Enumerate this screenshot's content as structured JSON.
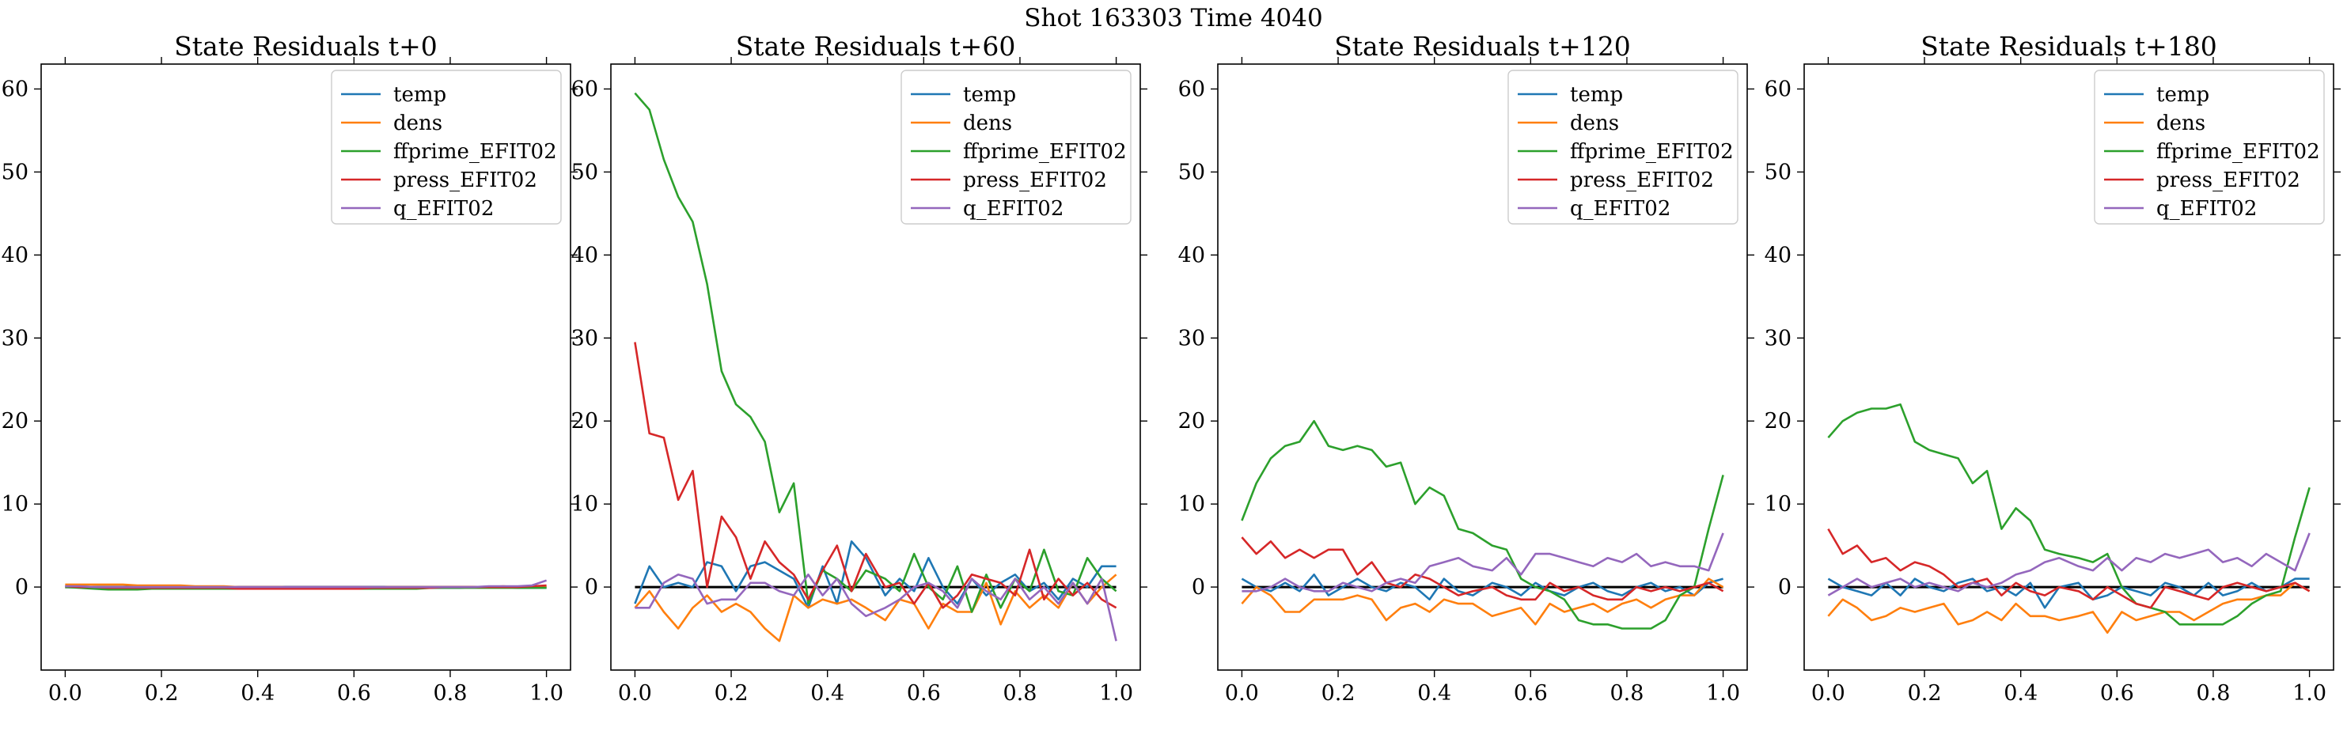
{
  "suptitle": "Shot 163303   Time 4040",
  "colors": {
    "temp": "#1f77b4",
    "dens": "#ff7f0e",
    "ffprime_EFIT02": "#2ca02c",
    "press_EFIT02": "#d62728",
    "q_EFIT02": "#9467bd",
    "zero_line": "#000000"
  },
  "chart_data": [
    {
      "type": "line",
      "title": "State Residuals t+0",
      "xlabel": "",
      "ylabel": "",
      "xlim": [
        -0.05,
        1.05
      ],
      "ylim": [
        -10,
        63
      ],
      "xticks": [
        "0.0",
        "0.2",
        "0.4",
        "0.6",
        "0.8",
        "1.0"
      ],
      "yticks": [
        "0",
        "10",
        "20",
        "30",
        "40",
        "50",
        "60"
      ],
      "grid": false,
      "legend_position": "top-right",
      "zero_line": true,
      "x": [
        0.0,
        0.03,
        0.06,
        0.09,
        0.12,
        0.15,
        0.18,
        0.21,
        0.24,
        0.27,
        0.3,
        0.33,
        0.36,
        0.39,
        0.42,
        0.45,
        0.48,
        0.52,
        0.55,
        0.58,
        0.61,
        0.64,
        0.67,
        0.7,
        0.73,
        0.76,
        0.79,
        0.82,
        0.85,
        0.88,
        0.91,
        0.94,
        0.97,
        1.0
      ],
      "series": [
        {
          "name": "temp",
          "values": [
            0.2,
            0.1,
            0.0,
            -0.1,
            -0.1,
            -0.2,
            -0.1,
            -0.1,
            -0.1,
            -0.1,
            -0.1,
            -0.2,
            -0.2,
            -0.2,
            -0.2,
            -0.2,
            -0.2,
            -0.2,
            -0.2,
            -0.2,
            -0.2,
            -0.2,
            -0.1,
            -0.1,
            -0.1,
            -0.1,
            -0.1,
            -0.1,
            0.0,
            0.0,
            0.0,
            -0.1,
            -0.1,
            -0.1
          ]
        },
        {
          "name": "dens",
          "values": [
            0.3,
            0.3,
            0.3,
            0.3,
            0.3,
            0.2,
            0.2,
            0.2,
            0.2,
            0.1,
            0.1,
            0.1,
            0.0,
            0.0,
            0.0,
            0.0,
            -0.1,
            -0.1,
            -0.1,
            -0.1,
            -0.1,
            -0.1,
            0.0,
            0.0,
            0.0,
            0.0,
            0.0,
            0.0,
            0.0,
            0.0,
            0.1,
            0.0,
            0.0,
            0.0
          ]
        },
        {
          "name": "ffprime_EFIT02",
          "values": [
            0.0,
            -0.1,
            -0.2,
            -0.3,
            -0.3,
            -0.3,
            -0.2,
            -0.2,
            -0.2,
            -0.2,
            -0.2,
            -0.2,
            -0.2,
            -0.2,
            -0.2,
            -0.2,
            -0.2,
            -0.2,
            -0.2,
            -0.2,
            -0.2,
            -0.2,
            -0.2,
            -0.2,
            -0.2,
            -0.1,
            -0.1,
            -0.1,
            -0.1,
            -0.1,
            -0.1,
            -0.1,
            -0.1,
            -0.1
          ]
        },
        {
          "name": "press_EFIT02",
          "values": [
            0.1,
            0.0,
            0.0,
            -0.1,
            -0.1,
            -0.1,
            -0.1,
            -0.1,
            -0.1,
            -0.1,
            -0.1,
            -0.1,
            -0.2,
            -0.2,
            -0.2,
            -0.2,
            -0.2,
            -0.2,
            -0.2,
            -0.2,
            -0.2,
            -0.1,
            -0.1,
            -0.1,
            -0.1,
            -0.1,
            0.0,
            0.0,
            0.0,
            0.0,
            0.0,
            0.0,
            0.1,
            0.2
          ]
        },
        {
          "name": "q_EFIT02",
          "values": [
            0.1,
            0.1,
            0.0,
            0.0,
            0.0,
            0.0,
            0.0,
            0.0,
            0.0,
            0.0,
            0.0,
            0.0,
            0.0,
            0.0,
            0.0,
            0.0,
            0.0,
            0.0,
            0.0,
            0.0,
            0.0,
            0.0,
            0.0,
            0.0,
            0.0,
            0.0,
            0.0,
            0.0,
            0.0,
            0.1,
            0.1,
            0.1,
            0.2,
            0.8
          ]
        }
      ]
    },
    {
      "type": "line",
      "title": "State Residuals t+60",
      "xlabel": "",
      "ylabel": "",
      "xlim": [
        -0.05,
        1.05
      ],
      "ylim": [
        -10,
        63
      ],
      "xticks": [
        "0.0",
        "0.2",
        "0.4",
        "0.6",
        "0.8",
        "1.0"
      ],
      "yticks": [
        "0",
        "10",
        "20",
        "30",
        "40",
        "50",
        "60"
      ],
      "grid": false,
      "legend_position": "top-right",
      "zero_line": true,
      "x": [
        0.0,
        0.03,
        0.06,
        0.09,
        0.12,
        0.15,
        0.18,
        0.21,
        0.24,
        0.27,
        0.3,
        0.33,
        0.36,
        0.39,
        0.42,
        0.45,
        0.48,
        0.52,
        0.55,
        0.58,
        0.61,
        0.64,
        0.67,
        0.7,
        0.73,
        0.76,
        0.79,
        0.82,
        0.85,
        0.88,
        0.91,
        0.94,
        0.97,
        1.0
      ],
      "series": [
        {
          "name": "temp",
          "values": [
            -2.0,
            2.5,
            0.0,
            0.5,
            0.0,
            3.0,
            2.5,
            -0.5,
            2.5,
            3.0,
            2.0,
            1.0,
            -2.5,
            2.5,
            -2.0,
            5.5,
            3.5,
            -1.0,
            1.0,
            -0.5,
            3.5,
            0.0,
            -2.0,
            1.0,
            -1.0,
            0.5,
            1.5,
            -0.5,
            0.5,
            -1.5,
            1.0,
            0.0,
            2.5,
            2.5
          ]
        },
        {
          "name": "dens",
          "values": [
            -2.5,
            -0.5,
            -3.0,
            -5.0,
            -2.5,
            -1.0,
            -3.0,
            -2.0,
            -3.0,
            -5.0,
            -6.5,
            -1.0,
            -2.5,
            -1.5,
            -2.0,
            -1.5,
            -2.5,
            -4.0,
            -1.5,
            -2.0,
            -5.0,
            -2.0,
            -3.0,
            -3.0,
            0.5,
            -4.5,
            -0.5,
            -2.5,
            -1.0,
            -2.5,
            0.5,
            -2.0,
            0.0,
            1.5
          ]
        },
        {
          "name": "ffprime_EFIT02",
          "values": [
            59.5,
            57.5,
            51.5,
            47.0,
            44.0,
            36.5,
            26.0,
            22.0,
            20.5,
            17.5,
            9.0,
            12.5,
            -2.0,
            2.0,
            1.0,
            -0.5,
            2.0,
            1.0,
            -0.5,
            4.0,
            0.0,
            -1.5,
            2.5,
            -3.0,
            1.5,
            -2.5,
            1.0,
            -0.5,
            4.5,
            -0.5,
            -1.0,
            3.5,
            1.0,
            -0.5
          ]
        },
        {
          "name": "press_EFIT02",
          "values": [
            29.5,
            18.5,
            18.0,
            10.5,
            14.0,
            0.0,
            8.5,
            6.0,
            1.0,
            5.5,
            3.0,
            1.5,
            -1.5,
            2.0,
            5.0,
            -0.5,
            4.0,
            0.0,
            0.5,
            -2.0,
            0.5,
            -2.5,
            -1.0,
            1.5,
            1.0,
            0.5,
            -1.0,
            4.5,
            -1.5,
            1.0,
            -1.0,
            0.5,
            -1.5,
            -2.5
          ]
        },
        {
          "name": "q_EFIT02",
          "values": [
            -2.5,
            -2.5,
            0.5,
            1.5,
            1.0,
            -2.0,
            -1.5,
            -1.5,
            0.5,
            0.5,
            -0.5,
            -1.0,
            1.5,
            -1.0,
            1.0,
            -2.0,
            -3.5,
            -2.5,
            -1.5,
            0.0,
            0.5,
            -0.5,
            -2.5,
            1.0,
            -0.5,
            -1.5,
            1.0,
            -1.5,
            0.0,
            -2.0,
            0.5,
            -2.0,
            1.0,
            -6.5
          ]
        }
      ]
    },
    {
      "type": "line",
      "title": "State Residuals t+120",
      "xlabel": "",
      "ylabel": "",
      "xlim": [
        -0.05,
        1.05
      ],
      "ylim": [
        -10,
        63
      ],
      "xticks": [
        "0.0",
        "0.2",
        "0.4",
        "0.6",
        "0.8",
        "1.0"
      ],
      "yticks": [
        "0",
        "10",
        "20",
        "30",
        "40",
        "50",
        "60"
      ],
      "grid": false,
      "legend_position": "top-right",
      "zero_line": true,
      "x": [
        0.0,
        0.03,
        0.06,
        0.09,
        0.12,
        0.15,
        0.18,
        0.21,
        0.24,
        0.27,
        0.3,
        0.33,
        0.36,
        0.39,
        0.42,
        0.45,
        0.48,
        0.52,
        0.55,
        0.58,
        0.61,
        0.64,
        0.67,
        0.7,
        0.73,
        0.76,
        0.79,
        0.82,
        0.85,
        0.88,
        0.91,
        0.94,
        0.97,
        1.0
      ],
      "series": [
        {
          "name": "temp",
          "values": [
            1.0,
            0.0,
            -0.5,
            0.5,
            -0.5,
            1.5,
            -1.0,
            0.0,
            1.0,
            0.0,
            -0.5,
            0.5,
            0.0,
            -1.5,
            1.0,
            -0.5,
            -1.0,
            0.5,
            0.0,
            -1.0,
            0.5,
            -0.5,
            -1.0,
            0.0,
            0.5,
            -0.5,
            -1.0,
            0.0,
            0.5,
            -0.5,
            0.0,
            -1.0,
            0.5,
            1.0
          ]
        },
        {
          "name": "dens",
          "values": [
            -2.0,
            0.0,
            -1.0,
            -3.0,
            -3.0,
            -1.5,
            -1.5,
            -1.5,
            -1.0,
            -1.5,
            -4.0,
            -2.5,
            -2.0,
            -3.0,
            -1.5,
            -2.0,
            -2.0,
            -3.5,
            -3.0,
            -2.5,
            -4.5,
            -2.0,
            -3.0,
            -2.5,
            -2.0,
            -3.0,
            -2.0,
            -1.5,
            -2.5,
            -1.5,
            -1.0,
            -1.0,
            1.0,
            0.0
          ]
        },
        {
          "name": "ffprime_EFIT02",
          "values": [
            8.0,
            12.5,
            15.5,
            17.0,
            17.5,
            20.0,
            17.0,
            16.5,
            17.0,
            16.5,
            14.5,
            15.0,
            10.0,
            12.0,
            11.0,
            7.0,
            6.5,
            5.0,
            4.5,
            1.0,
            0.0,
            -0.5,
            -1.5,
            -4.0,
            -4.5,
            -4.5,
            -5.0,
            -5.0,
            -5.0,
            -4.0,
            -1.0,
            0.0,
            7.0,
            13.5
          ]
        },
        {
          "name": "press_EFIT02",
          "values": [
            6.0,
            4.0,
            5.5,
            3.5,
            4.5,
            3.5,
            4.5,
            4.5,
            1.5,
            3.0,
            0.5,
            0.0,
            1.5,
            1.0,
            0.0,
            -1.0,
            -0.5,
            0.0,
            -1.0,
            -1.5,
            -1.5,
            0.5,
            -0.5,
            0.0,
            -1.0,
            -1.5,
            -1.5,
            0.0,
            -0.5,
            0.0,
            -0.5,
            0.0,
            0.5,
            -0.5
          ]
        },
        {
          "name": "q_EFIT02",
          "values": [
            -0.5,
            -0.5,
            0.0,
            1.0,
            0.0,
            -0.5,
            -0.5,
            0.5,
            0.0,
            -0.5,
            0.5,
            1.0,
            0.5,
            2.5,
            3.0,
            3.5,
            2.5,
            2.0,
            3.5,
            1.5,
            4.0,
            4.0,
            3.5,
            3.0,
            2.5,
            3.5,
            3.0,
            4.0,
            2.5,
            3.0,
            2.5,
            2.5,
            2.0,
            6.5
          ]
        }
      ]
    },
    {
      "type": "line",
      "title": "State Residuals t+180",
      "xlabel": "",
      "ylabel": "",
      "xlim": [
        -0.05,
        1.05
      ],
      "ylim": [
        -10,
        63
      ],
      "xticks": [
        "0.0",
        "0.2",
        "0.4",
        "0.6",
        "0.8",
        "1.0"
      ],
      "yticks": [
        "0",
        "10",
        "20",
        "30",
        "40",
        "50",
        "60"
      ],
      "grid": false,
      "legend_position": "top-right",
      "zero_line": true,
      "x": [
        0.0,
        0.03,
        0.06,
        0.09,
        0.12,
        0.15,
        0.18,
        0.21,
        0.24,
        0.27,
        0.3,
        0.33,
        0.36,
        0.39,
        0.42,
        0.45,
        0.48,
        0.52,
        0.55,
        0.58,
        0.61,
        0.64,
        0.67,
        0.7,
        0.73,
        0.76,
        0.79,
        0.82,
        0.85,
        0.88,
        0.91,
        0.94,
        0.97,
        1.0
      ],
      "series": [
        {
          "name": "temp",
          "values": [
            1.0,
            0.0,
            -0.5,
            -1.0,
            0.5,
            -1.0,
            1.0,
            0.0,
            -0.5,
            0.5,
            1.0,
            -0.5,
            0.0,
            -1.0,
            0.5,
            -2.5,
            0.0,
            0.5,
            -1.5,
            -1.0,
            0.0,
            -0.5,
            -1.0,
            0.5,
            0.0,
            -1.0,
            0.5,
            -1.0,
            -0.5,
            0.5,
            -0.5,
            0.0,
            1.0,
            1.0
          ]
        },
        {
          "name": "dens",
          "values": [
            -3.5,
            -1.5,
            -2.5,
            -4.0,
            -3.5,
            -2.5,
            -3.0,
            -2.5,
            -2.0,
            -4.5,
            -4.0,
            -3.0,
            -4.0,
            -2.0,
            -3.5,
            -3.5,
            -4.0,
            -3.5,
            -3.0,
            -5.5,
            -3.0,
            -4.0,
            -3.5,
            -3.0,
            -3.0,
            -4.0,
            -3.0,
            -2.0,
            -1.5,
            -1.5,
            -1.0,
            -1.0,
            0.5,
            -0.5
          ]
        },
        {
          "name": "ffprime_EFIT02",
          "values": [
            18.0,
            20.0,
            21.0,
            21.5,
            21.5,
            22.0,
            17.5,
            16.5,
            16.0,
            15.5,
            12.5,
            14.0,
            7.0,
            9.5,
            8.0,
            4.5,
            4.0,
            3.5,
            3.0,
            4.0,
            0.0,
            -2.0,
            -2.5,
            -3.0,
            -4.5,
            -4.5,
            -4.5,
            -4.5,
            -3.5,
            -2.0,
            -1.0,
            -0.5,
            6.0,
            12.0
          ]
        },
        {
          "name": "press_EFIT02",
          "values": [
            7.0,
            4.0,
            5.0,
            3.0,
            3.5,
            2.0,
            3.0,
            2.5,
            1.5,
            0.0,
            0.5,
            1.0,
            -1.0,
            0.5,
            -0.5,
            -1.0,
            0.0,
            -0.5,
            -1.5,
            0.0,
            -1.0,
            -2.0,
            -2.5,
            0.0,
            -0.5,
            -1.0,
            -1.5,
            0.0,
            0.5,
            0.0,
            -0.5,
            0.0,
            0.5,
            -0.5
          ]
        },
        {
          "name": "q_EFIT02",
          "values": [
            -1.0,
            0.0,
            1.0,
            0.0,
            0.5,
            1.0,
            0.0,
            0.5,
            0.0,
            -0.5,
            0.5,
            0.0,
            0.5,
            1.5,
            2.0,
            3.0,
            3.5,
            2.5,
            2.0,
            3.5,
            2.0,
            3.5,
            3.0,
            4.0,
            3.5,
            4.0,
            4.5,
            3.0,
            3.5,
            2.5,
            4.0,
            3.0,
            2.0,
            6.5
          ]
        }
      ]
    }
  ]
}
